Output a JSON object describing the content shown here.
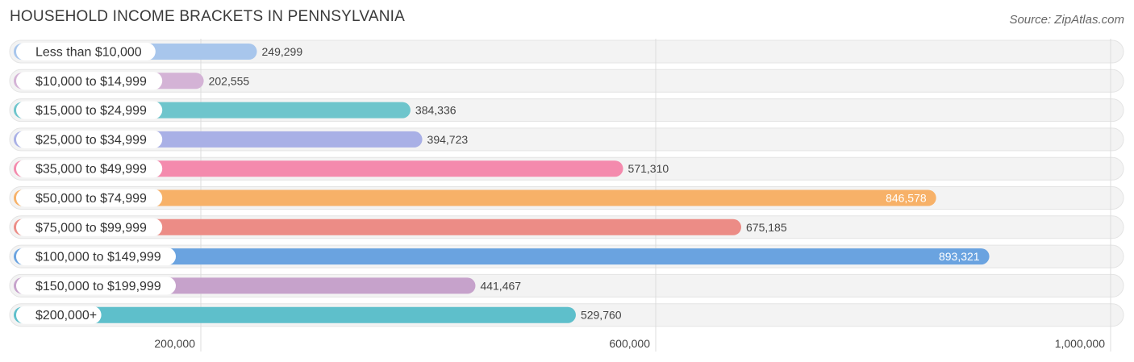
{
  "header": {
    "title": "HOUSEHOLD INCOME BRACKETS IN PENNSYLVANIA",
    "source": "Source: ZipAtlas.com"
  },
  "chart_data": {
    "type": "bar",
    "orientation": "horizontal",
    "title": "HOUSEHOLD INCOME BRACKETS IN PENNSYLVANIA",
    "categories": [
      "Less than $10,000",
      "$10,000 to $14,999",
      "$15,000 to $24,999",
      "$25,000 to $34,999",
      "$35,000 to $49,999",
      "$50,000 to $74,999",
      "$75,000 to $99,999",
      "$100,000 to $149,999",
      "$150,000 to $199,999",
      "$200,000+"
    ],
    "values": [
      249299,
      202555,
      384336,
      394723,
      571310,
      846578,
      675185,
      893321,
      441467,
      529760
    ],
    "value_labels": [
      "249,299",
      "202,555",
      "384,336",
      "394,723",
      "571,310",
      "846,578",
      "675,185",
      "893,321",
      "441,467",
      "529,760"
    ],
    "colors": [
      "#a8c6ec",
      "#d4b3d6",
      "#6ec5cc",
      "#a9b0e6",
      "#f48aad",
      "#f7b168",
      "#ec8c86",
      "#6aa3e0",
      "#c6a2cb",
      "#5ebfcb"
    ],
    "xticks": [
      200000,
      600000,
      1000000
    ],
    "xtick_labels": [
      "200,000",
      "600,000",
      "1,000,000"
    ],
    "xlim": [
      0,
      1000000
    ],
    "xlabel": "",
    "ylabel": "",
    "grid": true
  }
}
